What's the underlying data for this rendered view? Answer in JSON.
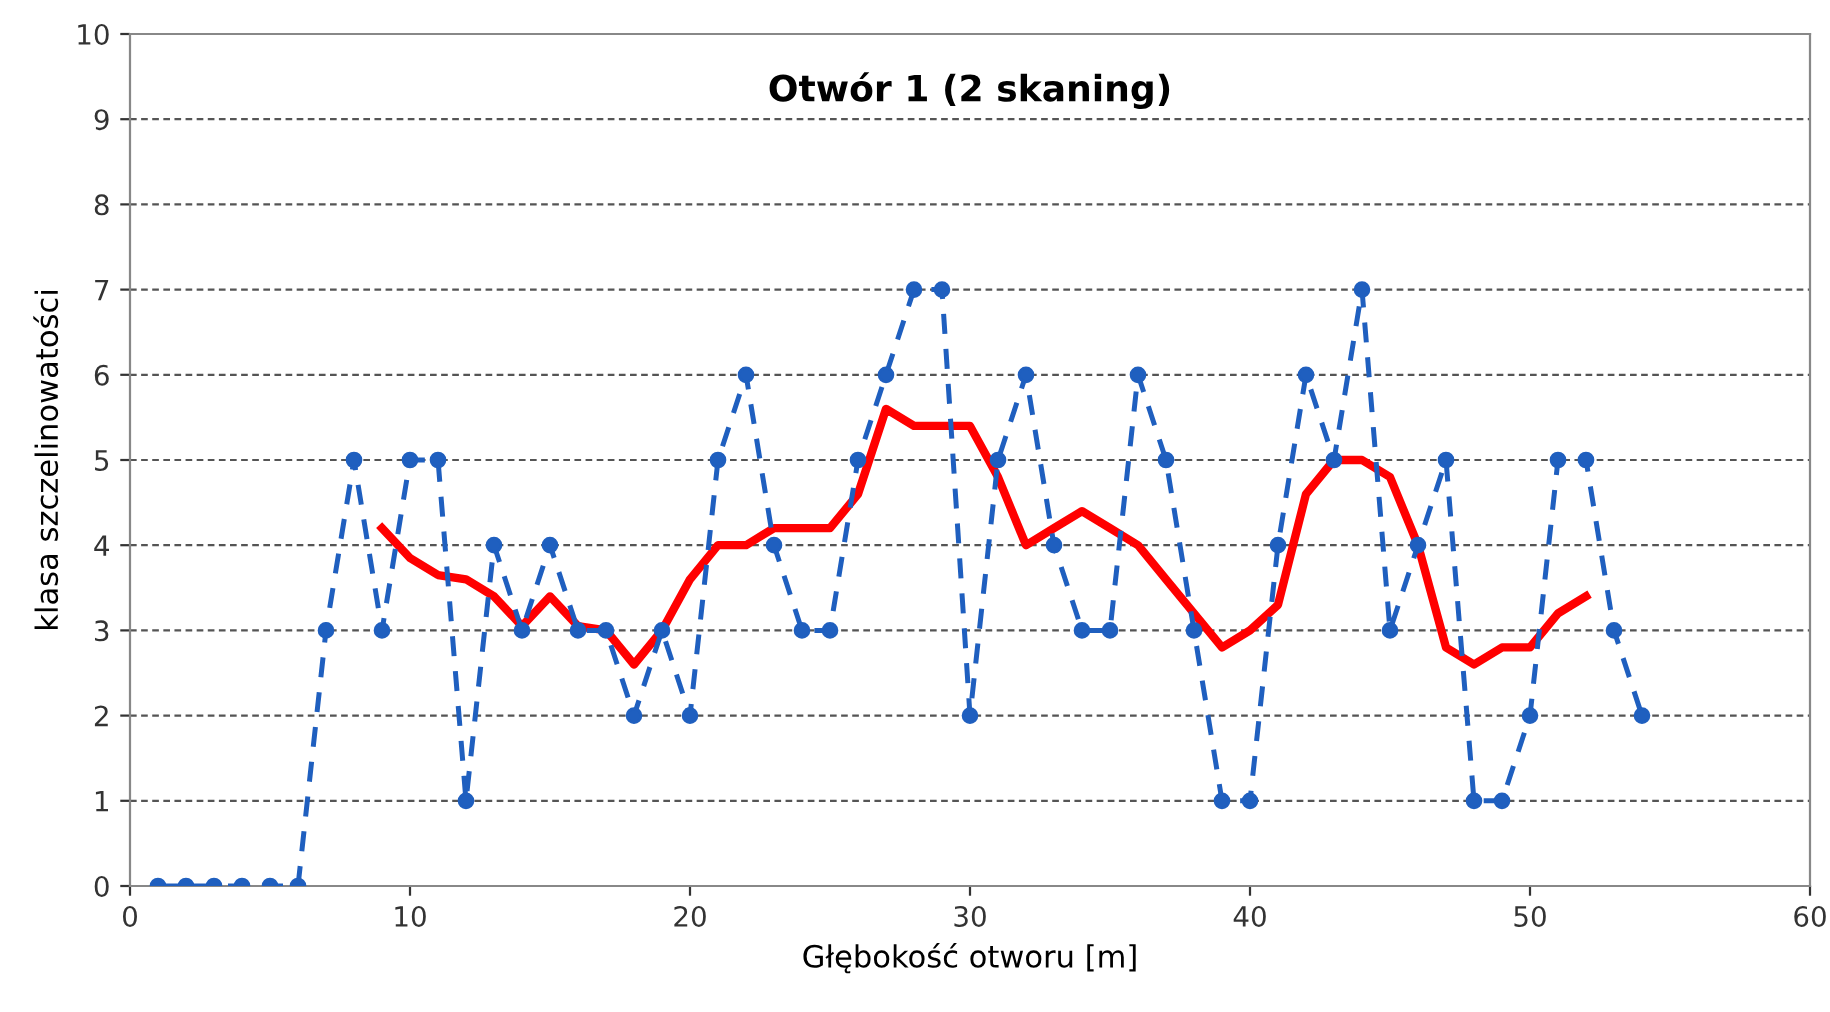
{
  "chart_data": {
    "type": "line",
    "title": "Otwór 1 (2 skaning)",
    "xlabel": "Głębokość otworu [m]",
    "ylabel": "klasa szczelinowatości",
    "xlim": [
      0,
      60
    ],
    "xticks": [
      0,
      10,
      20,
      30,
      40,
      50,
      60
    ],
    "ylim": [
      0,
      10
    ],
    "yticks": [
      0,
      1,
      2,
      3,
      4,
      5,
      6,
      7,
      8,
      9,
      10
    ],
    "grid": "y",
    "legend": false,
    "series": [
      {
        "color": "#1f5fbf",
        "marker": "circle",
        "line_style": "dashed",
        "x": [
          1,
          2,
          3,
          4,
          5,
          6,
          7,
          8,
          9,
          10,
          11,
          12,
          13,
          14,
          15,
          16,
          17,
          18,
          19,
          20,
          21,
          22,
          23,
          24,
          25,
          26,
          27,
          28,
          29,
          30,
          31,
          32,
          33,
          34,
          35,
          36,
          37,
          38,
          39,
          40,
          41,
          42,
          43,
          44,
          45,
          46,
          47,
          48,
          49,
          50,
          51,
          52,
          53,
          54
        ],
        "values": [
          0,
          0,
          0,
          0,
          0,
          0,
          3,
          5,
          3,
          5,
          5,
          1,
          4,
          3,
          4,
          3,
          3,
          2,
          3,
          2,
          5,
          6,
          4,
          3,
          3,
          5,
          6,
          7,
          7,
          2,
          5,
          6,
          4,
          3,
          3,
          6,
          5,
          3,
          1,
          1,
          4,
          6,
          5,
          7,
          3,
          4,
          5,
          1,
          1,
          2,
          5,
          5,
          3,
          2
        ]
      },
      {
        "color": "#ff0000",
        "marker": "none",
        "line_style": "solid",
        "x": [
          9,
          10,
          11,
          12,
          13,
          14,
          15,
          16,
          17,
          18,
          19,
          20,
          21,
          22,
          23,
          24,
          25,
          26,
          27,
          28,
          29,
          30,
          31,
          32,
          33,
          34,
          35,
          36,
          37,
          38,
          39,
          40,
          41,
          42,
          43,
          44,
          45,
          46,
          47,
          48,
          49,
          50,
          51,
          52
        ],
        "values": [
          4.2,
          3.85,
          3.65,
          3.6,
          3.4,
          3.05,
          3.4,
          3.05,
          3.0,
          2.6,
          3.0,
          3.6,
          4.0,
          4.0,
          4.2,
          4.2,
          4.2,
          4.6,
          5.6,
          5.4,
          5.4,
          5.4,
          4.8,
          4.0,
          4.2,
          4.4,
          4.2,
          4.0,
          3.6,
          3.2,
          2.8,
          3.0,
          3.3,
          4.6,
          5.0,
          5.0,
          4.8,
          4.0,
          2.8,
          2.6,
          2.8,
          2.8,
          3.2,
          3.4
        ]
      }
    ]
  }
}
